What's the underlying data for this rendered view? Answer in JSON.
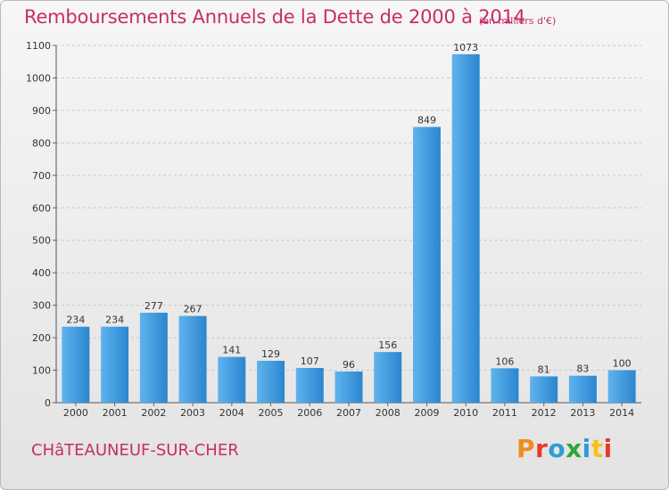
{
  "header": {
    "title": "Remboursements Annuels de la Dette de 2000 à 2014",
    "unit": "(en milliers d'€)"
  },
  "footer": {
    "commune": "CHâTEAUNEUF-SUR-CHER",
    "logo": "Proxiti"
  },
  "colors": {
    "bar": "#3d97dc",
    "title": "#c72d6a",
    "logo_letters": [
      "#f08b1d",
      "#e8392c",
      "#2f9bd7",
      "#2aa83a",
      "#2f9bd7",
      "#f3c31a",
      "#e8392c"
    ]
  },
  "chart_data": {
    "type": "bar",
    "title": "Remboursements Annuels de la Dette de 2000 à 2014",
    "subtitle": "(en milliers d'€)",
    "categories": [
      "2000",
      "2001",
      "2002",
      "2003",
      "2004",
      "2005",
      "2006",
      "2007",
      "2008",
      "2009",
      "2010",
      "2011",
      "2012",
      "2013",
      "2014"
    ],
    "values": [
      234,
      234,
      277,
      267,
      141,
      129,
      107,
      96,
      156,
      849,
      1073,
      106,
      81,
      83,
      100
    ],
    "ylim": [
      0,
      1100
    ],
    "yticks": [
      0,
      100,
      200,
      300,
      400,
      500,
      600,
      700,
      800,
      900,
      1000,
      1100
    ],
    "grid": true,
    "data_labels": true
  }
}
